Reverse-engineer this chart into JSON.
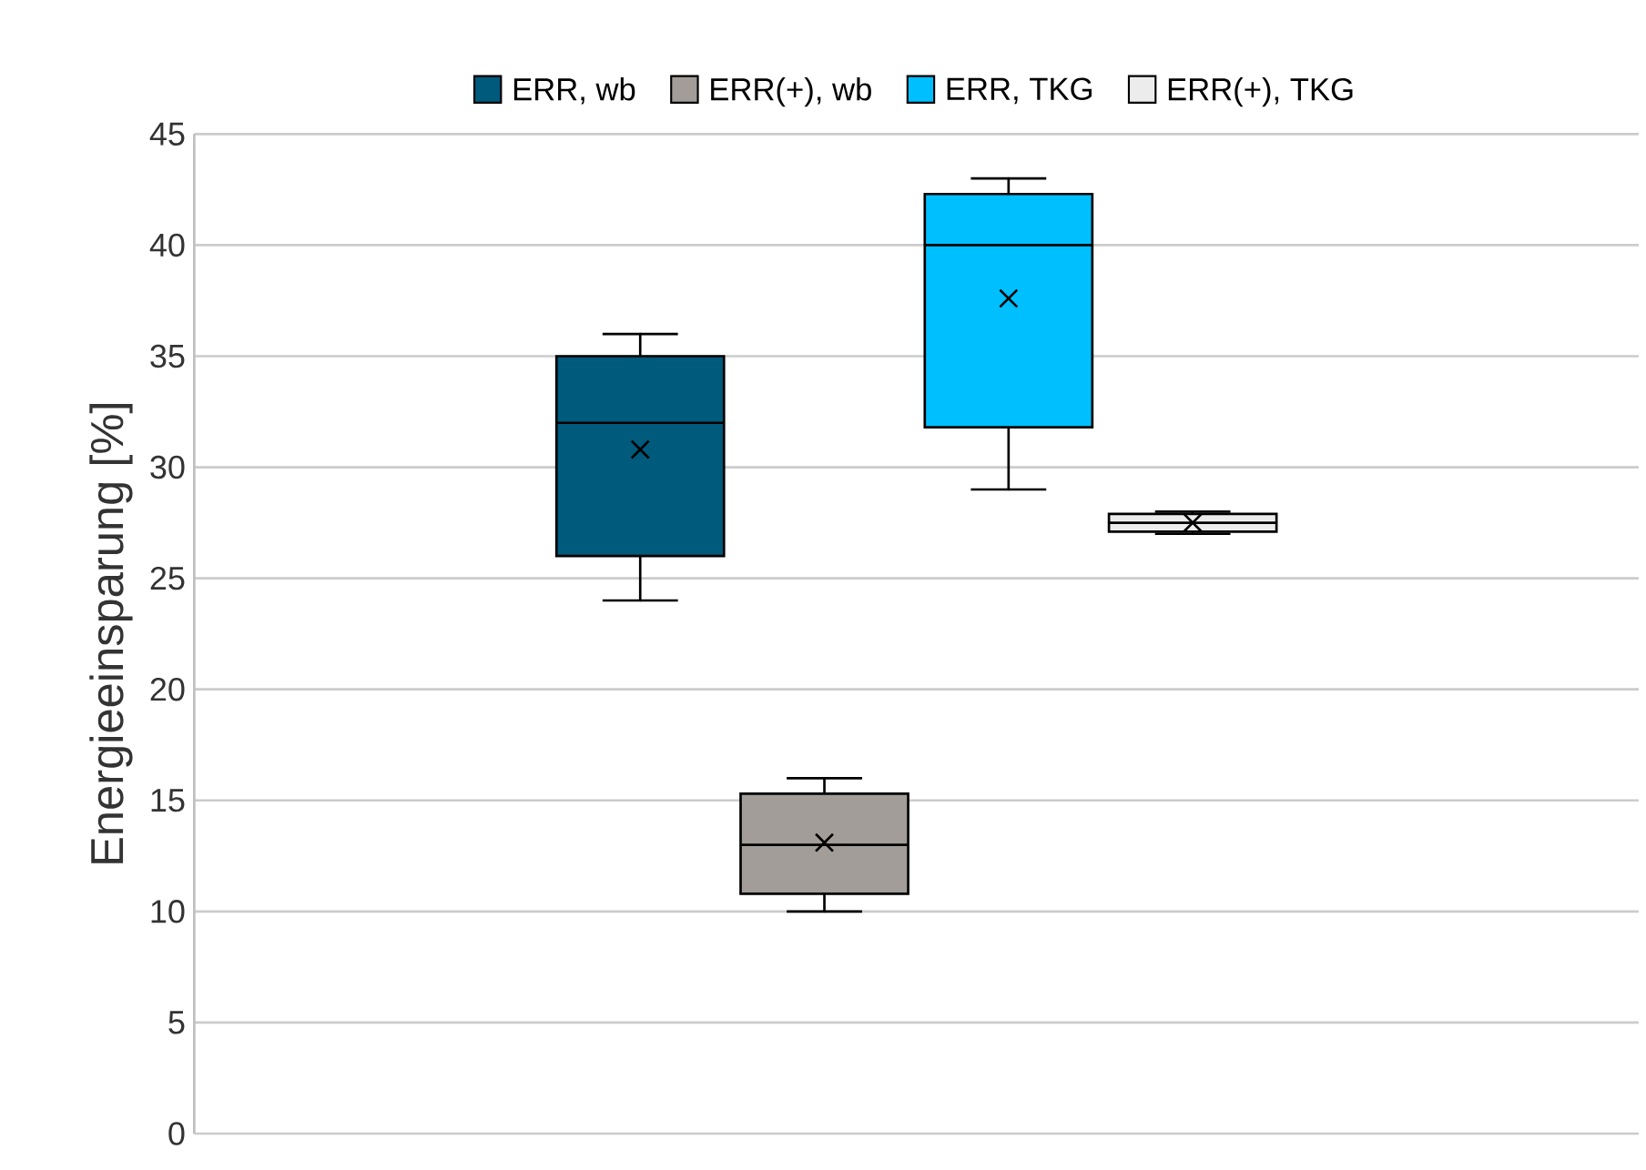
{
  "chart_data": {
    "type": "box",
    "ylabel": "Energieeinsparung [%]",
    "categories": [
      null
    ],
    "ylim": [
      0,
      45
    ],
    "yticks": [
      0,
      5,
      10,
      15,
      20,
      25,
      30,
      35,
      40,
      45
    ],
    "grid": "y",
    "legend": "top",
    "marker": "cross",
    "tick_labels": "y",
    "series": [
      {
        "name": "ERR, wb",
        "color": "#005a7c",
        "boxes": [
          {
            "low": 24,
            "q1": 26,
            "median": 32,
            "q3": 35,
            "high": 36,
            "mean": 30.8
          }
        ]
      },
      {
        "name": "ERR(+), wb",
        "color": "#a29d99",
        "boxes": [
          {
            "low": 10,
            "q1": 10.8,
            "median": 13,
            "q3": 15.3,
            "high": 16,
            "mean": 13.1
          }
        ]
      },
      {
        "name": "ERR, TKG",
        "color": "#00bfff",
        "boxes": [
          {
            "low": 29,
            "q1": 31.8,
            "median": 40,
            "q3": 42.3,
            "high": 43,
            "mean": 37.6
          }
        ]
      },
      {
        "name": "ERR(+), TKG",
        "color": "#ececec",
        "boxes": [
          {
            "low": 27,
            "q1": 27.1,
            "median": 27.5,
            "q3": 27.9,
            "high": 28,
            "mean": 27.5
          }
        ]
      }
    ]
  }
}
